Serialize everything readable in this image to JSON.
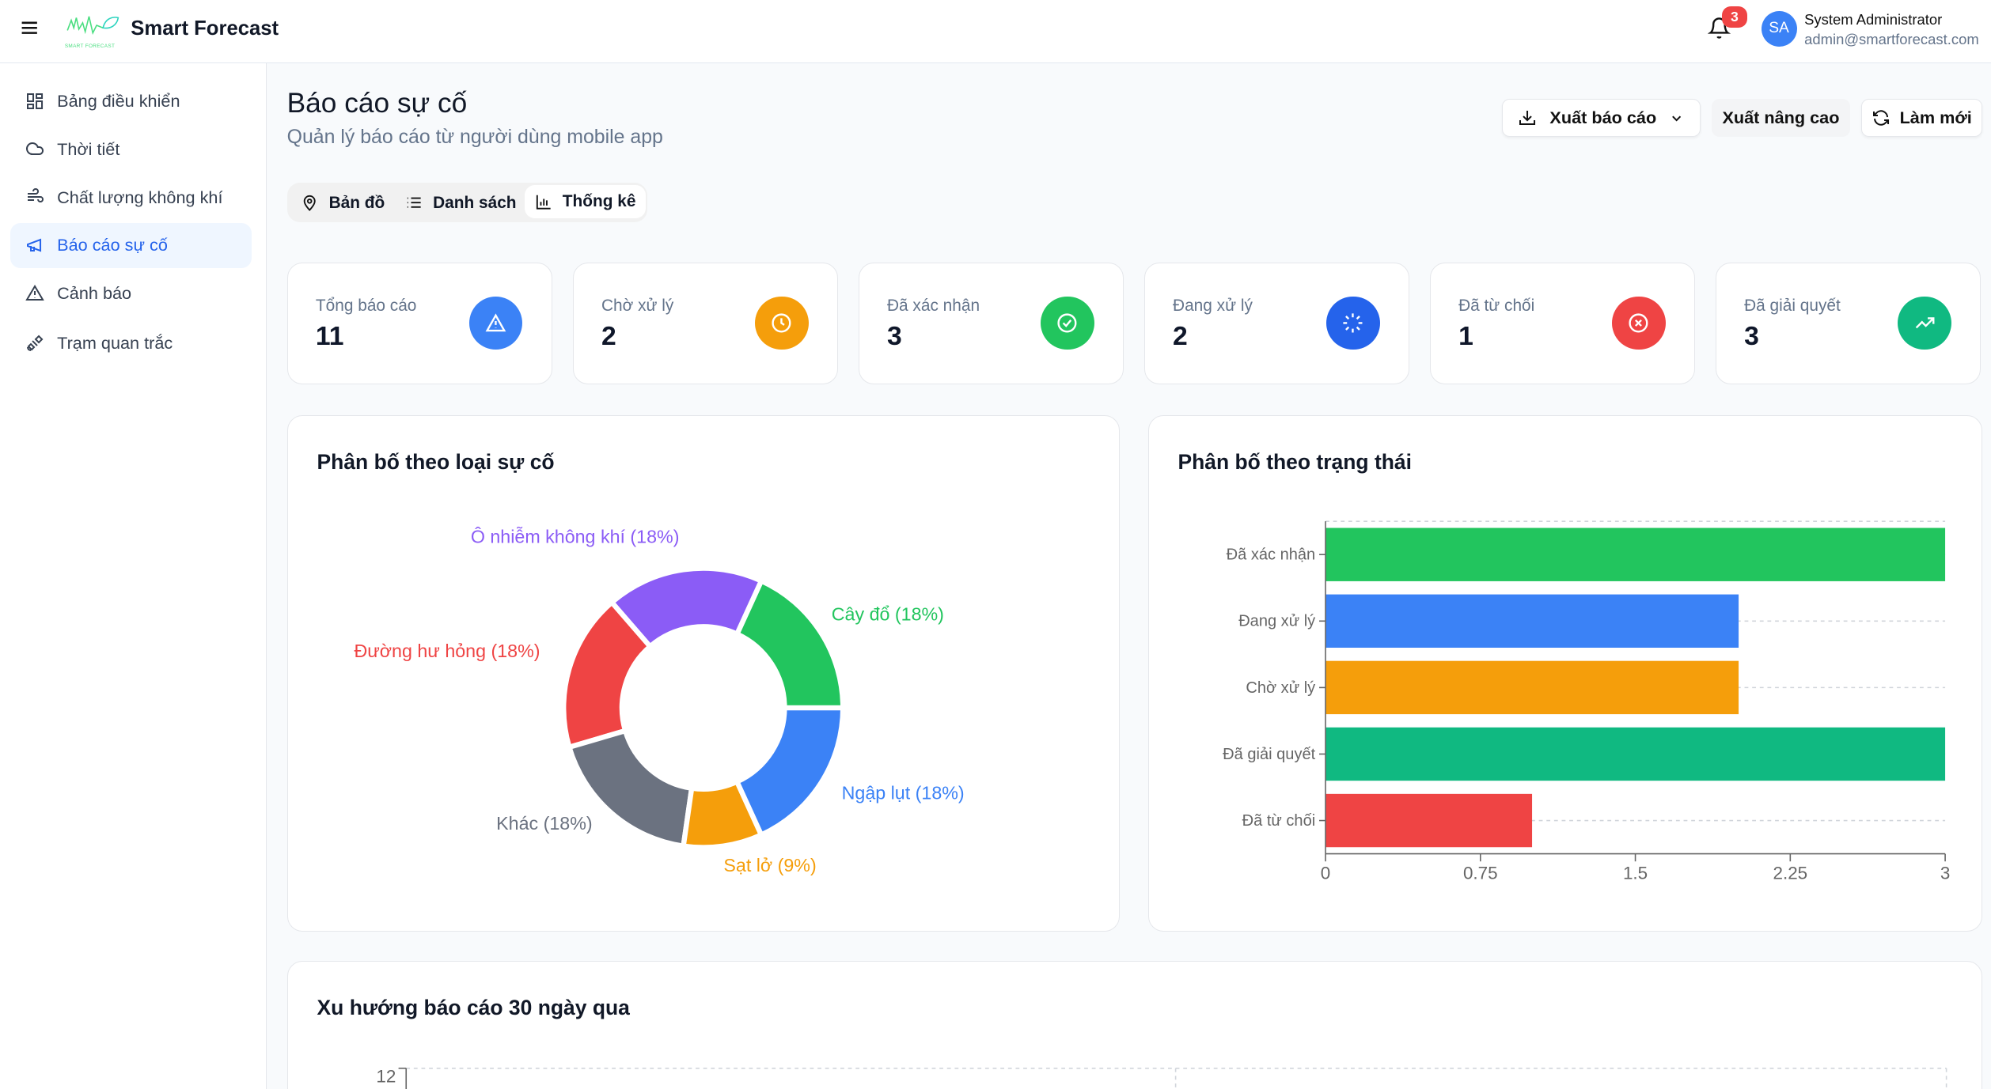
{
  "header": {
    "app_name": "Smart Forecast",
    "logo_text": "SMART FORECAST",
    "notification_count": "3",
    "user": {
      "initials": "SA",
      "name": "System Administrator",
      "email": "admin@smartforecast.com"
    }
  },
  "sidebar": {
    "items": [
      {
        "label": "Bảng điều khiển",
        "icon": "dashboard-icon",
        "active": false
      },
      {
        "label": "Thời tiết",
        "icon": "cloud-icon",
        "active": false
      },
      {
        "label": "Chất lượng không khí",
        "icon": "wind-icon",
        "active": false
      },
      {
        "label": "Báo cáo sự cố",
        "icon": "megaphone-icon",
        "active": true
      },
      {
        "label": "Cảnh báo",
        "icon": "warning-icon",
        "active": false
      },
      {
        "label": "Trạm quan trắc",
        "icon": "satellite-icon",
        "active": false
      }
    ]
  },
  "page": {
    "title": "Báo cáo sự cố",
    "subtitle": "Quản lý báo cáo từ người dùng mobile app"
  },
  "toolbar": {
    "export_label": "Xuất báo cáo",
    "advanced_export_label": "Xuất nâng cao",
    "refresh_label": "Làm mới"
  },
  "tabs": [
    {
      "label": "Bản đồ",
      "active": false
    },
    {
      "label": "Danh sách",
      "active": false
    },
    {
      "label": "Thống kê",
      "active": true
    }
  ],
  "stats": [
    {
      "label": "Tổng báo cáo",
      "value": "11",
      "color": "#3b82f6",
      "icon": "alert-triangle-icon"
    },
    {
      "label": "Chờ xử lý",
      "value": "2",
      "color": "#f59e0b",
      "icon": "clock-icon"
    },
    {
      "label": "Đã xác nhận",
      "value": "3",
      "color": "#22c55e",
      "icon": "check-circle-icon"
    },
    {
      "label": "Đang xử lý",
      "value": "2",
      "color": "#2563eb",
      "icon": "loader-icon"
    },
    {
      "label": "Đã từ chối",
      "value": "1",
      "color": "#ef4444",
      "icon": "x-circle-icon"
    },
    {
      "label": "Đã giải quyết",
      "value": "3",
      "color": "#10b981",
      "icon": "trending-up-icon"
    }
  ],
  "chart_data": [
    {
      "type": "pie",
      "title": "Phân bố theo loại sự cố",
      "donut": true,
      "slices": [
        {
          "label": "Cây đổ (18%)",
          "value": 2,
          "color": "#22c55e"
        },
        {
          "label": "Ô nhiễm không khí (18%)",
          "value": 2,
          "color": "#8b5cf6"
        },
        {
          "label": "Đường hư hỏng (18%)",
          "value": 2,
          "color": "#ef4444"
        },
        {
          "label": "Khác (18%)",
          "value": 2,
          "color": "#6b7280"
        },
        {
          "label": "Sạt lở (9%)",
          "value": 1,
          "color": "#f59e0b"
        },
        {
          "label": "Ngập lụt (18%)",
          "value": 2,
          "color": "#3b82f6"
        }
      ]
    },
    {
      "type": "bar",
      "orientation": "horizontal",
      "title": "Phân bố theo trạng thái",
      "categories": [
        "Đã xác nhận",
        "Đang xử lý",
        "Chờ xử lý",
        "Đã giải quyết",
        "Đã từ chối"
      ],
      "values": [
        3,
        2,
        2,
        3,
        1
      ],
      "colors": [
        "#22c55e",
        "#3b82f6",
        "#f59e0b",
        "#10b981",
        "#ef4444"
      ],
      "xlim": [
        0,
        3
      ],
      "xticks": [
        "0",
        "0.75",
        "1.5",
        "2.25",
        "3"
      ],
      "grid": true
    },
    {
      "type": "line",
      "title": "Xu hướng báo cáo 30 ngày qua",
      "yticks": [
        "12"
      ]
    }
  ]
}
